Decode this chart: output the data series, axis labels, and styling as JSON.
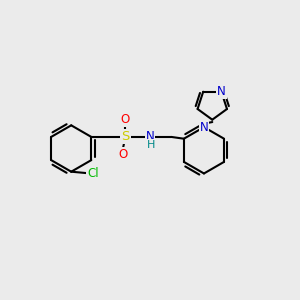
{
  "background_color": "#ebebeb",
  "bond_color": "#000000",
  "bond_width": 1.5,
  "atoms": {
    "cl": {
      "label": "Cl",
      "color": "#00bb00",
      "fontsize": 8.5
    },
    "s": {
      "label": "S",
      "color": "#cccc00",
      "fontsize": 9.5
    },
    "o1": {
      "label": "O",
      "color": "#ff0000",
      "fontsize": 8.5
    },
    "o2": {
      "label": "O",
      "color": "#ff0000",
      "fontsize": 8.5
    },
    "nh": {
      "label": "N",
      "color": "#0000cc",
      "fontsize": 8.5
    },
    "nh_h": {
      "label": "H",
      "color": "#008888",
      "fontsize": 8.0
    },
    "n_im1": {
      "label": "N",
      "color": "#0000cc",
      "fontsize": 8.5
    },
    "n_im2": {
      "label": "N",
      "color": "#0000cc",
      "fontsize": 8.5
    }
  },
  "scale": 1.0,
  "ring_r": 0.78,
  "im_r": 0.52
}
